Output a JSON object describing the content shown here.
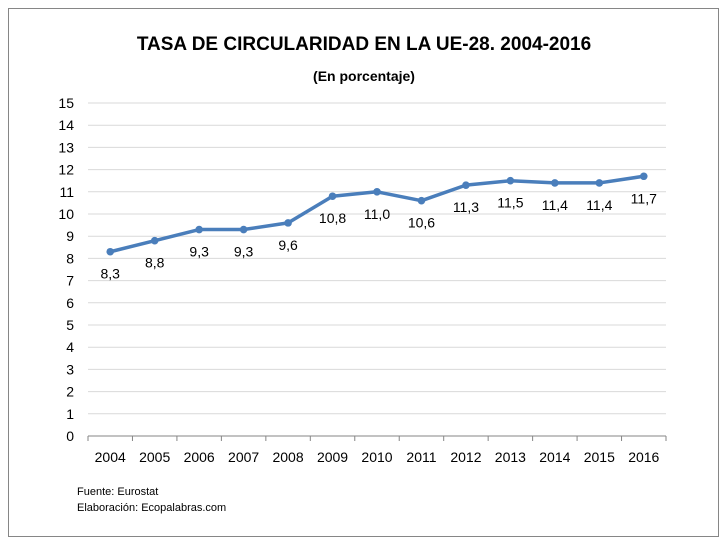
{
  "chart_data": {
    "type": "line",
    "title": "TASA DE CIRCULARIDAD EN LA UE-28. 2004-2016",
    "subtitle": "(En porcentaje)",
    "xlabel": "",
    "ylabel": "",
    "categories": [
      "2004",
      "2005",
      "2006",
      "2007",
      "2008",
      "2009",
      "2010",
      "2011",
      "2012",
      "2013",
      "2014",
      "2015",
      "2016"
    ],
    "values": [
      8.3,
      8.8,
      9.3,
      9.3,
      9.6,
      10.8,
      11.0,
      10.6,
      11.3,
      11.5,
      11.4,
      11.4,
      11.7
    ],
    "data_labels": [
      "8,3",
      "8,8",
      "9,3",
      "9,3",
      "9,6",
      "10,8",
      "11,0",
      "10,6",
      "11,3",
      "11,5",
      "11,4",
      "11,4",
      "11,7"
    ],
    "ylim": [
      0,
      15
    ],
    "yticks": [
      0,
      1,
      2,
      3,
      4,
      5,
      6,
      7,
      8,
      9,
      10,
      11,
      12,
      13,
      14,
      15
    ],
    "grid": true,
    "legend": "none",
    "line_color": "#4a7ebb"
  },
  "footer": {
    "source": "Fuente: Eurostat",
    "credit": "Elaboración: Ecopalabras.com"
  }
}
